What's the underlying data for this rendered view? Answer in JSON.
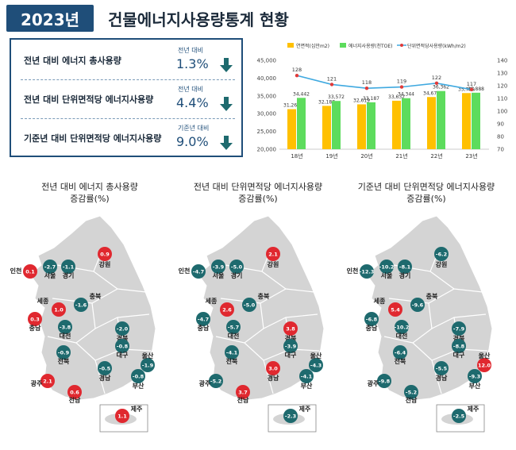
{
  "header": {
    "year_badge": "2023년",
    "title": "건물에너지사용량통계 현황"
  },
  "kpis": [
    {
      "label": "전년 대비 에너지 총사용량",
      "sub": "전년 대비",
      "value": "1.3%",
      "direction": "down"
    },
    {
      "label": "전년 대비 단위면적당 에너지사용량",
      "sub": "전년 대비",
      "value": "4.4%",
      "direction": "down"
    },
    {
      "label": "기준년 대비 단위면적당 에너지사용량",
      "sub": "기준년 대비",
      "value": "9.0%",
      "direction": "down"
    }
  ],
  "colors": {
    "brand": "#1f4e79",
    "bar_area": "#ffc000",
    "bar_energy": "#5ddc5d",
    "line": "#3fa9e0",
    "line_marker": "#e03a3a",
    "decrease": "#1e6a6e",
    "increase": "#e0282f",
    "map_fill": "#d4d4d4",
    "map_stroke": "#ffffff"
  },
  "chart_data": [
    {
      "type": "bar",
      "legend": [
        "연면적(십만m2)",
        "에너지사용량(천TOE)",
        "단위면적당사용량(kWh/m2)"
      ],
      "categories": [
        "18년",
        "19년",
        "20년",
        "21년",
        "22년",
        "23년"
      ],
      "series": [
        {
          "name": "연면적(십만m2)",
          "values": [
            31263,
            32187,
            32619,
            33632,
            34672,
            35789
          ],
          "labels": [
            "31,263",
            "32,187",
            "32,619",
            "33,632",
            "34,672",
            "35,789"
          ],
          "axis": "left",
          "kind": "bar"
        },
        {
          "name": "에너지사용량(천TOE)",
          "values": [
            34442,
            33572,
            33187,
            34344,
            36362,
            35888
          ],
          "labels": [
            "34,442",
            "33,572",
            "33,187",
            "34,344",
            "36,362",
            "35,888"
          ],
          "axis": "left",
          "kind": "bar"
        },
        {
          "name": "단위면적당사용량(kWh/m2)",
          "values": [
            128,
            121,
            118,
            119,
            122,
            117
          ],
          "labels": [
            "128",
            "121",
            "118",
            "119",
            "122",
            "117"
          ],
          "axis": "right",
          "kind": "line"
        }
      ],
      "ylim": [
        20000,
        45000
      ],
      "yticks": [
        "20,000",
        "25,000",
        "30,000",
        "35,000",
        "40,000",
        "45,000"
      ],
      "y2lim": [
        70,
        140
      ],
      "y2ticks": [
        "70",
        "80",
        "90",
        "100",
        "110",
        "120",
        "130",
        "140"
      ],
      "legend_position": "top"
    },
    {
      "type": "map",
      "title": [
        "전년 대비 에너지 총사용량",
        "증감률(%)"
      ],
      "regions": [
        {
          "name": "인천",
          "value": 0.1,
          "label": "0.1"
        },
        {
          "name": "서울",
          "value": -2.7,
          "label": "-2.7"
        },
        {
          "name": "경기",
          "value": -1.1,
          "label": "-1.1"
        },
        {
          "name": "강원",
          "value": 0.9,
          "label": "0.9"
        },
        {
          "name": "세종",
          "value": 1.0,
          "label": "1.0"
        },
        {
          "name": "충북",
          "value": -1.6,
          "label": "-1.6"
        },
        {
          "name": "충남",
          "value": 0.3,
          "label": "0.3"
        },
        {
          "name": "대전",
          "value": -3.8,
          "label": "-3.8"
        },
        {
          "name": "경북",
          "value": -2.0,
          "label": "-2.0"
        },
        {
          "name": "대구",
          "value": -0.8,
          "label": "-0.8"
        },
        {
          "name": "전북",
          "value": -0.9,
          "label": "-0.9"
        },
        {
          "name": "울산",
          "value": -1.9,
          "label": "-1.9"
        },
        {
          "name": "경남",
          "value": -0.5,
          "label": "-0.5"
        },
        {
          "name": "부산",
          "value": -0.8,
          "label": "-0.8"
        },
        {
          "name": "광주",
          "value": 2.1,
          "label": "2.1"
        },
        {
          "name": "전남",
          "value": 0.6,
          "label": "0.6"
        },
        {
          "name": "제주",
          "value": 1.1,
          "label": "1.1"
        }
      ]
    },
    {
      "type": "map",
      "title": [
        "전년 대비 단위면적당 에너지사용량",
        "증감률(%)"
      ],
      "regions": [
        {
          "name": "인천",
          "value": -4.7,
          "label": "-4.7"
        },
        {
          "name": "서울",
          "value": -3.9,
          "label": "-3.9"
        },
        {
          "name": "경기",
          "value": -5.0,
          "label": "-5.0"
        },
        {
          "name": "강원",
          "value": 2.1,
          "label": "2.1"
        },
        {
          "name": "세종",
          "value": 2.6,
          "label": "2.6"
        },
        {
          "name": "충북",
          "value": -5.0,
          "label": "-5.0"
        },
        {
          "name": "충남",
          "value": -4.7,
          "label": "-4.7"
        },
        {
          "name": "대전",
          "value": -5.7,
          "label": "-5.7"
        },
        {
          "name": "경북",
          "value": 3.8,
          "label": "3.8"
        },
        {
          "name": "대구",
          "value": -3.9,
          "label": "-3.9"
        },
        {
          "name": "전북",
          "value": -4.1,
          "label": "-4.1"
        },
        {
          "name": "울산",
          "value": -4.3,
          "label": "-4.3"
        },
        {
          "name": "경남",
          "value": 3.0,
          "label": "3.0"
        },
        {
          "name": "부산",
          "value": -4.1,
          "label": "-4.1"
        },
        {
          "name": "광주",
          "value": -5.2,
          "label": "-5.2"
        },
        {
          "name": "전남",
          "value": 3.7,
          "label": "3.7"
        },
        {
          "name": "제주",
          "value": -2.3,
          "label": "-2.3"
        }
      ]
    },
    {
      "type": "map",
      "title": [
        "기준년 대비 단위면적당 에너지사용량",
        "증감률(%)"
      ],
      "regions": [
        {
          "name": "인천",
          "value": -12.3,
          "label": "-12.3"
        },
        {
          "name": "서울",
          "value": -10.2,
          "label": "-10.2"
        },
        {
          "name": "경기",
          "value": -8.1,
          "label": "-8.1"
        },
        {
          "name": "강원",
          "value": -6.2,
          "label": "-6.2"
        },
        {
          "name": "세종",
          "value": 5.4,
          "label": "5.4"
        },
        {
          "name": "충북",
          "value": -9.6,
          "label": "-9.6"
        },
        {
          "name": "충남",
          "value": -6.8,
          "label": "-6.8"
        },
        {
          "name": "대전",
          "value": -10.2,
          "label": "-10.2"
        },
        {
          "name": "경북",
          "value": -7.9,
          "label": "-7.9"
        },
        {
          "name": "대구",
          "value": -8.8,
          "label": "-8.8"
        },
        {
          "name": "전북",
          "value": -6.4,
          "label": "-6.4"
        },
        {
          "name": "울산",
          "value": 12.0,
          "label": "12.0"
        },
        {
          "name": "경남",
          "value": -5.5,
          "label": "-5.5"
        },
        {
          "name": "부산",
          "value": -9.3,
          "label": "-9.3"
        },
        {
          "name": "광주",
          "value": -9.8,
          "label": "-9.8"
        },
        {
          "name": "전남",
          "value": -5.2,
          "label": "-5.2"
        },
        {
          "name": "제주",
          "value": -2.5,
          "label": "-2.5"
        }
      ]
    }
  ]
}
